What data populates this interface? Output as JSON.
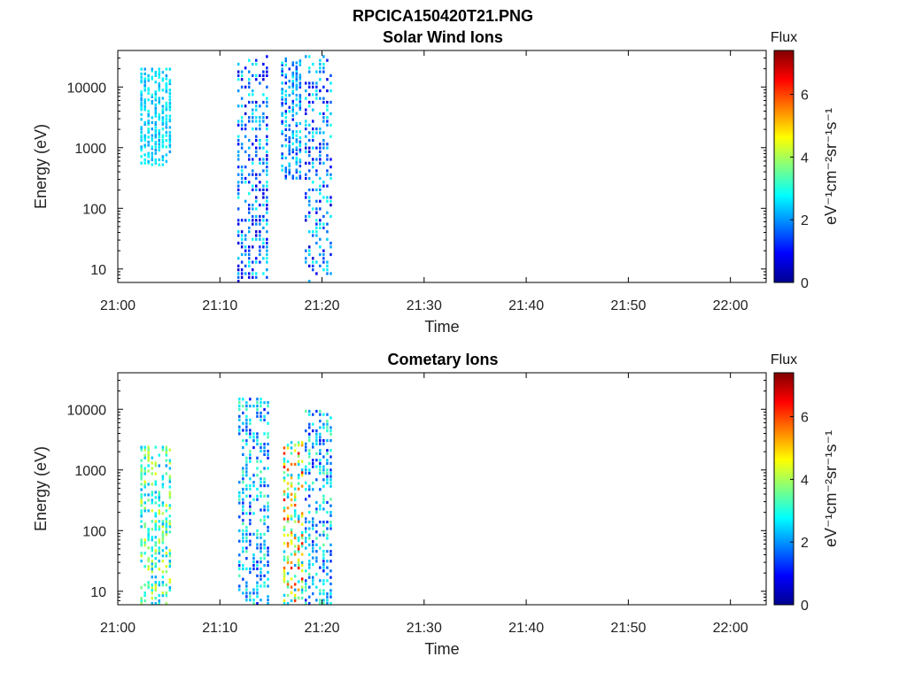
{
  "figure": {
    "filename_title": "RPCICA150420T21.PNG"
  },
  "colors": {
    "colormap": [
      "#00008f",
      "#0000ff",
      "#0080ff",
      "#00ffff",
      "#80ff80",
      "#ffff00",
      "#ff8000",
      "#ff0000",
      "#800000"
    ],
    "axis": "#000000",
    "background": "#ffffff"
  },
  "chart_data": [
    {
      "type": "heatmap",
      "title": "Solar Wind Ions",
      "xlabel": "Time",
      "ylabel": "Energy (eV)",
      "x_ticks": [
        "21:00",
        "21:10",
        "21:20",
        "21:30",
        "21:40",
        "21:50",
        "22:00"
      ],
      "x_tick_minutes": [
        0,
        10,
        20,
        30,
        40,
        50,
        60
      ],
      "xlim_minutes": [
        0,
        63.5
      ],
      "y_ticks": [
        10,
        100,
        1000,
        10000
      ],
      "yscale": "log",
      "ylim": [
        6,
        40000
      ],
      "colorbar": {
        "label": "Flux",
        "unit": "eV⁻¹cm⁻²sr⁻¹s⁻¹",
        "ticks": [
          0,
          2,
          4,
          6
        ],
        "range": [
          0,
          7.4
        ]
      },
      "bursts": [
        {
          "t_start": 2.2,
          "t_end": 5.3,
          "e_min": 500,
          "e_max": 20000,
          "flux": [
            2.0,
            3.0
          ]
        },
        {
          "t_start": 11.7,
          "t_end": 14.7,
          "e_min": 6,
          "e_max": 35000,
          "flux": [
            0.5,
            3.0
          ]
        },
        {
          "t_start": 16.0,
          "t_end": 18.0,
          "e_min": 300,
          "e_max": 30000,
          "flux": [
            1.0,
            3.0
          ]
        },
        {
          "t_start": 18.3,
          "t_end": 21.2,
          "e_min": 6,
          "e_max": 35000,
          "flux": [
            0.5,
            3.0
          ]
        }
      ]
    },
    {
      "type": "heatmap",
      "title": "Cometary Ions",
      "xlabel": "Time",
      "ylabel": "Energy (eV)",
      "x_ticks": [
        "21:00",
        "21:10",
        "21:20",
        "21:30",
        "21:40",
        "21:50",
        "22:00"
      ],
      "x_tick_minutes": [
        0,
        10,
        20,
        30,
        40,
        50,
        60
      ],
      "xlim_minutes": [
        0,
        63.5
      ],
      "y_ticks": [
        10,
        100,
        1000,
        10000
      ],
      "yscale": "log",
      "ylim": [
        6,
        40000
      ],
      "colorbar": {
        "label": "Flux",
        "unit": "eV⁻¹cm⁻²sr⁻¹s⁻¹",
        "ticks": [
          0,
          2,
          4,
          6
        ],
        "range": [
          0,
          7.4
        ]
      },
      "bursts": [
        {
          "t_start": 2.2,
          "t_end": 5.3,
          "e_min": 6,
          "e_max": 2500,
          "flux": [
            2.0,
            4.5
          ]
        },
        {
          "t_start": 11.8,
          "t_end": 15.0,
          "e_min": 6,
          "e_max": 16000,
          "flux": [
            1.0,
            3.5
          ]
        },
        {
          "t_start": 16.2,
          "t_end": 18.3,
          "e_min": 6,
          "e_max": 3000,
          "flux": [
            2.0,
            6.5
          ]
        },
        {
          "t_start": 18.3,
          "t_end": 21.2,
          "e_min": 6,
          "e_max": 10000,
          "flux": [
            1.0,
            3.5
          ]
        }
      ]
    }
  ]
}
